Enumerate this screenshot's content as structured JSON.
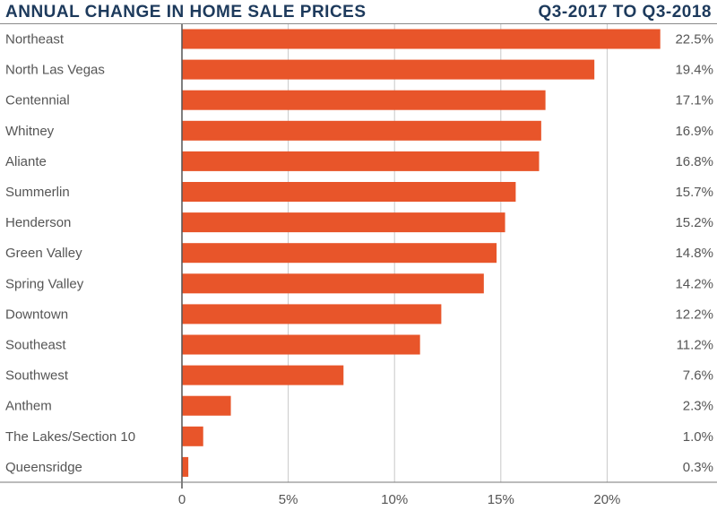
{
  "chart_data": {
    "type": "bar",
    "orientation": "horizontal",
    "title": "ANNUAL CHANGE IN HOME SALE PRICES",
    "subtitle": "Q3-2017 TO Q3-2018",
    "categories": [
      "Northeast",
      "North Las Vegas",
      "Centennial",
      "Whitney",
      "Aliante",
      "Summerlin",
      "Henderson",
      "Green Valley",
      "Spring Valley",
      "Downtown",
      "Southeast",
      "Southwest",
      "Anthem",
      "The Lakes/Section 10",
      "Queensridge"
    ],
    "values": [
      22.5,
      19.4,
      17.1,
      16.9,
      16.8,
      15.7,
      15.2,
      14.8,
      14.2,
      12.2,
      11.2,
      7.6,
      2.3,
      1.0,
      0.3
    ],
    "value_labels": [
      "22.5%",
      "19.4%",
      "17.1%",
      "16.9%",
      "16.8%",
      "15.7%",
      "15.2%",
      "14.8%",
      "14.2%",
      "12.2%",
      "11.2%",
      "7.6%",
      "2.3%",
      "1.0%",
      "0.3%"
    ],
    "xticks": [
      0,
      5,
      10,
      15,
      20
    ],
    "xtick_labels": [
      "0",
      "5%",
      "10%",
      "15%",
      "20%"
    ],
    "xlim": [
      0,
      25
    ],
    "xlabel": "",
    "ylabel": "",
    "grid": true,
    "bar_color": "#e8552a",
    "title_color": "#1d3a5c"
  }
}
